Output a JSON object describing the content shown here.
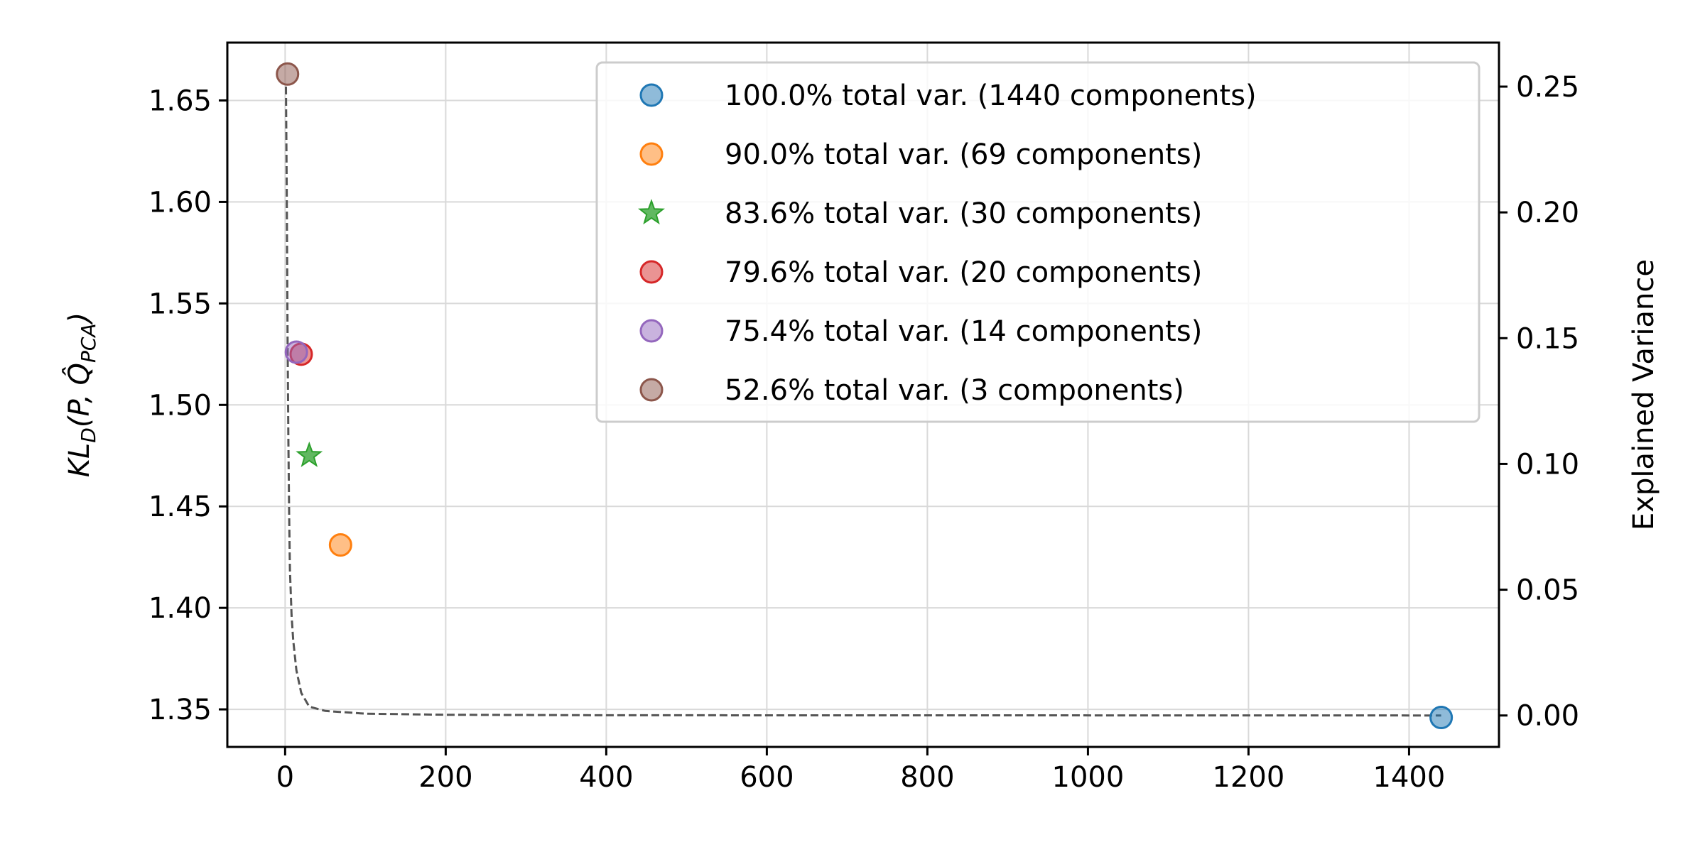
{
  "chart_data": {
    "type": "scatter",
    "title": "",
    "xlabel": "",
    "ylabel": "KL_D(P, Q̂_PCA)",
    "ylabel_parts": {
      "main": "KL",
      "main_sub": "D",
      "args_open": "(P, ",
      "q": "Q̂",
      "q_sub": "PCA",
      "args_close": ")"
    },
    "y2label": "Explained Variance",
    "xlim": [
      -72,
      1512
    ],
    "ylim": [
      1.3315,
      1.6785
    ],
    "y2lim": [
      -0.0125,
      0.2675
    ],
    "x_ticks": [
      "0",
      "200",
      "400",
      "600",
      "800",
      "1000",
      "1200",
      "1400"
    ],
    "y_ticks": [
      "1.35",
      "1.40",
      "1.45",
      "1.50",
      "1.55",
      "1.60",
      "1.65"
    ],
    "y2_ticks": [
      "0.00",
      "0.05",
      "0.10",
      "0.15",
      "0.20",
      "0.25"
    ],
    "grid": true,
    "legend_position": "top-right",
    "series": [
      {
        "name": "100.0% total var. (1440 components)",
        "x": 1440,
        "y": 1.346,
        "color": "#1f77b4",
        "marker": "circle"
      },
      {
        "name": "90.0% total var. (69 components)",
        "x": 69,
        "y": 1.431,
        "color": "#ff7f0e",
        "marker": "circle"
      },
      {
        "name": "83.6% total var. (30 components)",
        "x": 30,
        "y": 1.475,
        "color": "#2ca02c",
        "marker": "star"
      },
      {
        "name": "79.6% total var. (20 components)",
        "x": 20,
        "y": 1.525,
        "color": "#d62728",
        "marker": "circle"
      },
      {
        "name": "75.4% total var. (14 components)",
        "x": 14,
        "y": 1.526,
        "color": "#9467bd",
        "marker": "circle"
      },
      {
        "name": "52.6% total var. (3 components)",
        "x": 3,
        "y": 1.663,
        "color": "#8c564b",
        "marker": "circle"
      }
    ],
    "explained_variance_curve": {
      "axis": "right",
      "style": "dashed",
      "color": "#555555",
      "points": [
        [
          1,
          0.25
        ],
        [
          2,
          0.21
        ],
        [
          3,
          0.15
        ],
        [
          4,
          0.11
        ],
        [
          5,
          0.08
        ],
        [
          6,
          0.058
        ],
        [
          8,
          0.04
        ],
        [
          10,
          0.03
        ],
        [
          14,
          0.018
        ],
        [
          20,
          0.009
        ],
        [
          30,
          0.0035
        ],
        [
          50,
          0.0018
        ],
        [
          100,
          0.0007
        ],
        [
          200,
          0.0003
        ],
        [
          400,
          0.0001
        ],
        [
          800,
          5e-05
        ],
        [
          1440,
          0.0
        ]
      ]
    }
  }
}
